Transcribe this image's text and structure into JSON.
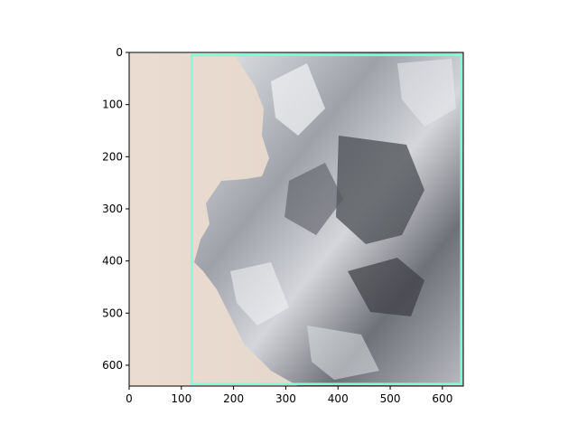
{
  "figure": {
    "image_subject": "crumpled aluminum foil against beige background",
    "x_ticks": [
      "0",
      "100",
      "200",
      "300",
      "400",
      "500",
      "600"
    ],
    "y_ticks": [
      "0",
      "100",
      "200",
      "300",
      "400",
      "500",
      "600"
    ],
    "x_tick_values": [
      0,
      100,
      200,
      300,
      400,
      500,
      600
    ],
    "y_tick_values": [
      0,
      100,
      200,
      300,
      400,
      500,
      600
    ],
    "extent": {
      "x": [
        0,
        640
      ],
      "y": [
        0,
        640
      ]
    },
    "box": {
      "x0": 120,
      "y0": 5,
      "x1": 636,
      "y1": 636,
      "color": "#7fffd4"
    },
    "colors": {
      "background": "#ede0d6",
      "background_shadow": "#dcd0c6",
      "foil_light": "#d9dbe0",
      "foil_mid": "#a3a6ad",
      "foil_dark": "#4a4c52"
    }
  }
}
